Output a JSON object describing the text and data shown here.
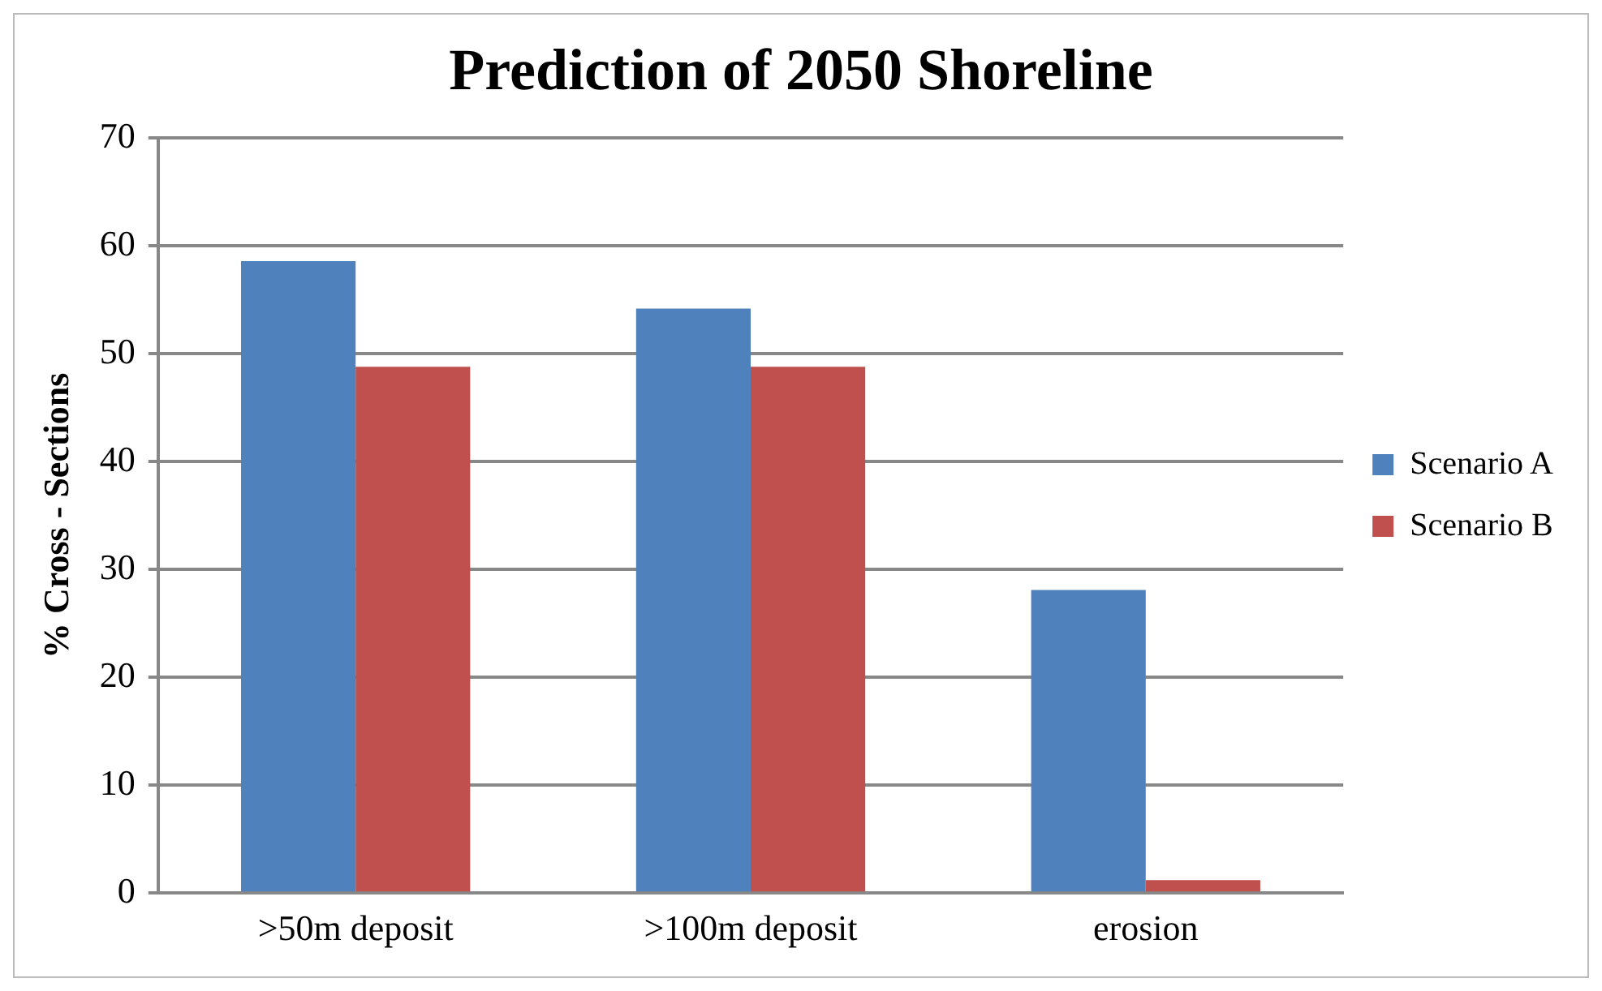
{
  "chart_data": {
    "type": "bar",
    "title": "Prediction of 2050 Shoreline",
    "ylabel": "% Cross - Sections",
    "categories": [
      ">50m deposit",
      ">100m deposit",
      "erosion"
    ],
    "series": [
      {
        "name": "Scenario A",
        "color": "#4f81bd",
        "values": [
          58.6,
          54.2,
          28.1
        ]
      },
      {
        "name": "Scenario B",
        "color": "#c0504d",
        "values": [
          48.8,
          48.8,
          1.2
        ]
      }
    ],
    "ylim": [
      0,
      70
    ],
    "yticks": [
      0,
      10,
      20,
      30,
      40,
      50,
      60,
      70
    ],
    "grid": "y",
    "legend": "right"
  }
}
